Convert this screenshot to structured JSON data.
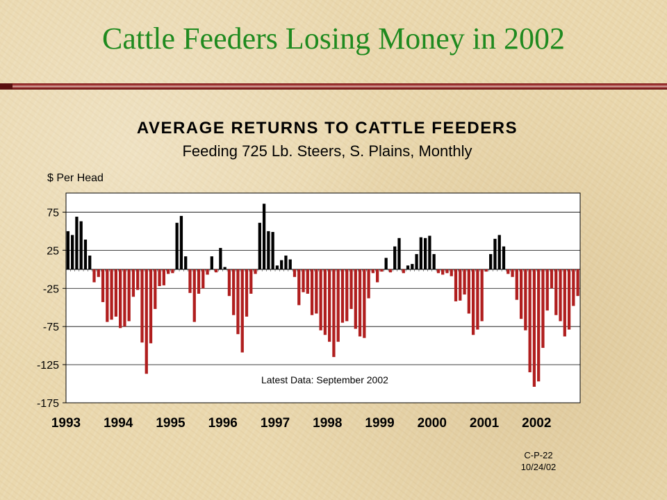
{
  "slide": {
    "title": "Cattle Feeders Losing Money in 2002",
    "code": "C-P-22",
    "date": "10/24/02"
  },
  "colors": {
    "title": "#1f8a1f",
    "positive_bar": "#000000",
    "negative_bar": "#b01e1e",
    "plot_bg": "#ffffff",
    "rule": "#8a2020"
  },
  "chart_data": {
    "type": "bar",
    "title": "AVERAGE RETURNS TO CATTLE FEEDERS",
    "subtitle": "Feeding 725 Lb. Steers, S. Plains, Monthly",
    "ylabel": "$ Per Head",
    "ylim": [
      -175,
      100
    ],
    "yticks": [
      75,
      25,
      -25,
      -75,
      -125,
      -175
    ],
    "year_labels": [
      "1993",
      "1994",
      "1995",
      "1996",
      "1997",
      "1998",
      "1999",
      "2000",
      "2001",
      "2002"
    ],
    "grid": true,
    "annotation": "Latest Data: September 2002",
    "series": [
      {
        "values": [
          50,
          45,
          69,
          63,
          39,
          18,
          -17,
          -10,
          -43,
          -69,
          -66,
          -62,
          -77,
          -75,
          -68,
          -36,
          -27,
          -96,
          -137,
          -97,
          -52,
          -22,
          -21,
          -6,
          -5,
          61,
          70,
          17,
          -31,
          -69,
          -32,
          -25,
          -7,
          17,
          -4,
          28,
          3,
          -35,
          -60,
          -85,
          -109,
          -62,
          -32,
          -6,
          61,
          86,
          50,
          49,
          5,
          12,
          18,
          13,
          -10,
          -47,
          -30,
          -32,
          -60,
          -58,
          -80,
          -86,
          -95,
          -115,
          -95,
          -70,
          -68,
          -52,
          -78,
          -88,
          -90,
          -38,
          -5,
          -17,
          -3,
          15,
          -4,
          30,
          41,
          -5,
          5,
          7,
          20,
          42,
          41,
          44,
          20,
          -5,
          -7,
          -5,
          -9,
          -42,
          -41,
          -33,
          -58,
          -86,
          -79,
          -68,
          -3,
          20,
          40,
          45,
          30,
          -6,
          -10,
          -40,
          -65,
          -80,
          -135,
          -154,
          -147,
          -103,
          -54,
          -25,
          -60,
          -68,
          -88,
          -79,
          -48,
          -35
        ]
      }
    ]
  }
}
